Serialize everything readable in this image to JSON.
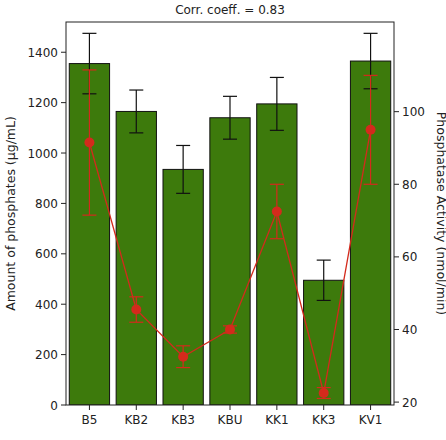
{
  "chart_data": {
    "type": "bar",
    "title": "Corr. coeff. = 0.83",
    "y_label": "Amount of phosphates (μg/mL)",
    "y2_label": "Phosphatase Activity (nmol/min)",
    "categories": [
      "B5",
      "KB2",
      "KB3",
      "KBU",
      "KK1",
      "KK3",
      "KV1"
    ],
    "ylim": [
      0,
      1520
    ],
    "yticks": [
      0,
      200,
      400,
      600,
      800,
      1000,
      1200,
      1400
    ],
    "y2lim": [
      19.2,
      124.7
    ],
    "y2ticks": [
      20,
      40,
      60,
      80,
      100
    ],
    "series": [
      {
        "type": "bar",
        "color": "#3d7a0c",
        "values": [
          1355,
          1165,
          935,
          1140,
          1195,
          495,
          1365
        ],
        "errors": [
          120,
          85,
          95,
          85,
          105,
          80,
          110
        ]
      },
      {
        "type": "line",
        "axis": "y2",
        "color": "#d42a1c",
        "marker": "circle",
        "values": [
          91.5,
          45.5,
          32.5,
          40,
          72.5,
          22.5,
          95
        ],
        "errors": [
          20,
          3.5,
          3,
          1,
          7.5,
          1.5,
          15
        ]
      }
    ]
  }
}
